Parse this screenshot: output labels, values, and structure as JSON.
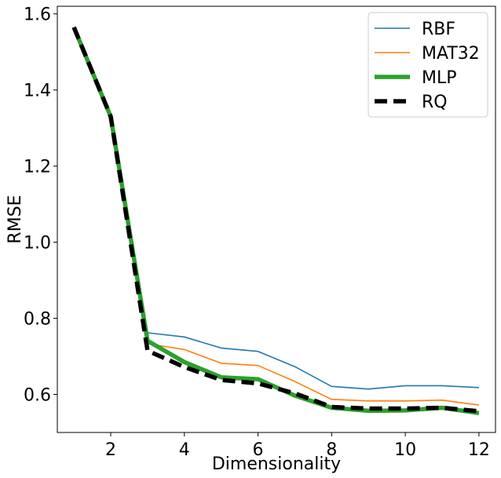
{
  "chart_data": {
    "type": "line",
    "xlabel": "Dimensionality",
    "ylabel": "RMSE",
    "xlim": [
      0.55,
      12.45
    ],
    "ylim": [
      0.5,
      1.62
    ],
    "xticks": [
      2,
      4,
      6,
      8,
      10,
      12
    ],
    "yticks": [
      0.6,
      0.8,
      1.0,
      1.2,
      1.4,
      1.6
    ],
    "ytick_labels": [
      "0.6",
      "0.8",
      "1.0",
      "1.2",
      "1.4",
      "1.6"
    ],
    "grid": false,
    "legend_position": "top-right",
    "x": [
      1,
      2,
      3,
      4,
      5,
      6,
      7,
      8,
      9,
      10,
      11,
      12
    ],
    "series": [
      {
        "name": "RBF",
        "color": "#1f77b4",
        "style": "solid-thin",
        "values": [
          1.565,
          1.33,
          0.762,
          0.751,
          0.722,
          0.713,
          0.673,
          0.621,
          0.614,
          0.623,
          0.623,
          0.618
        ]
      },
      {
        "name": "MAT32",
        "color": "#ff7f0e",
        "style": "solid-thin",
        "values": [
          1.565,
          1.33,
          0.733,
          0.718,
          0.682,
          0.676,
          0.634,
          0.587,
          0.583,
          0.583,
          0.585,
          0.572
        ]
      },
      {
        "name": "MLP",
        "color": "#2ca02c",
        "style": "solid-thick",
        "values": [
          1.565,
          1.33,
          0.741,
          0.685,
          0.645,
          0.64,
          0.597,
          0.565,
          0.557,
          0.558,
          0.565,
          0.551
        ]
      },
      {
        "name": "RQ",
        "color": "#000000",
        "style": "dashed-thick",
        "values": [
          1.565,
          1.33,
          0.715,
          0.672,
          0.638,
          0.629,
          0.603,
          0.567,
          0.563,
          0.563,
          0.565,
          0.556
        ]
      }
    ]
  }
}
